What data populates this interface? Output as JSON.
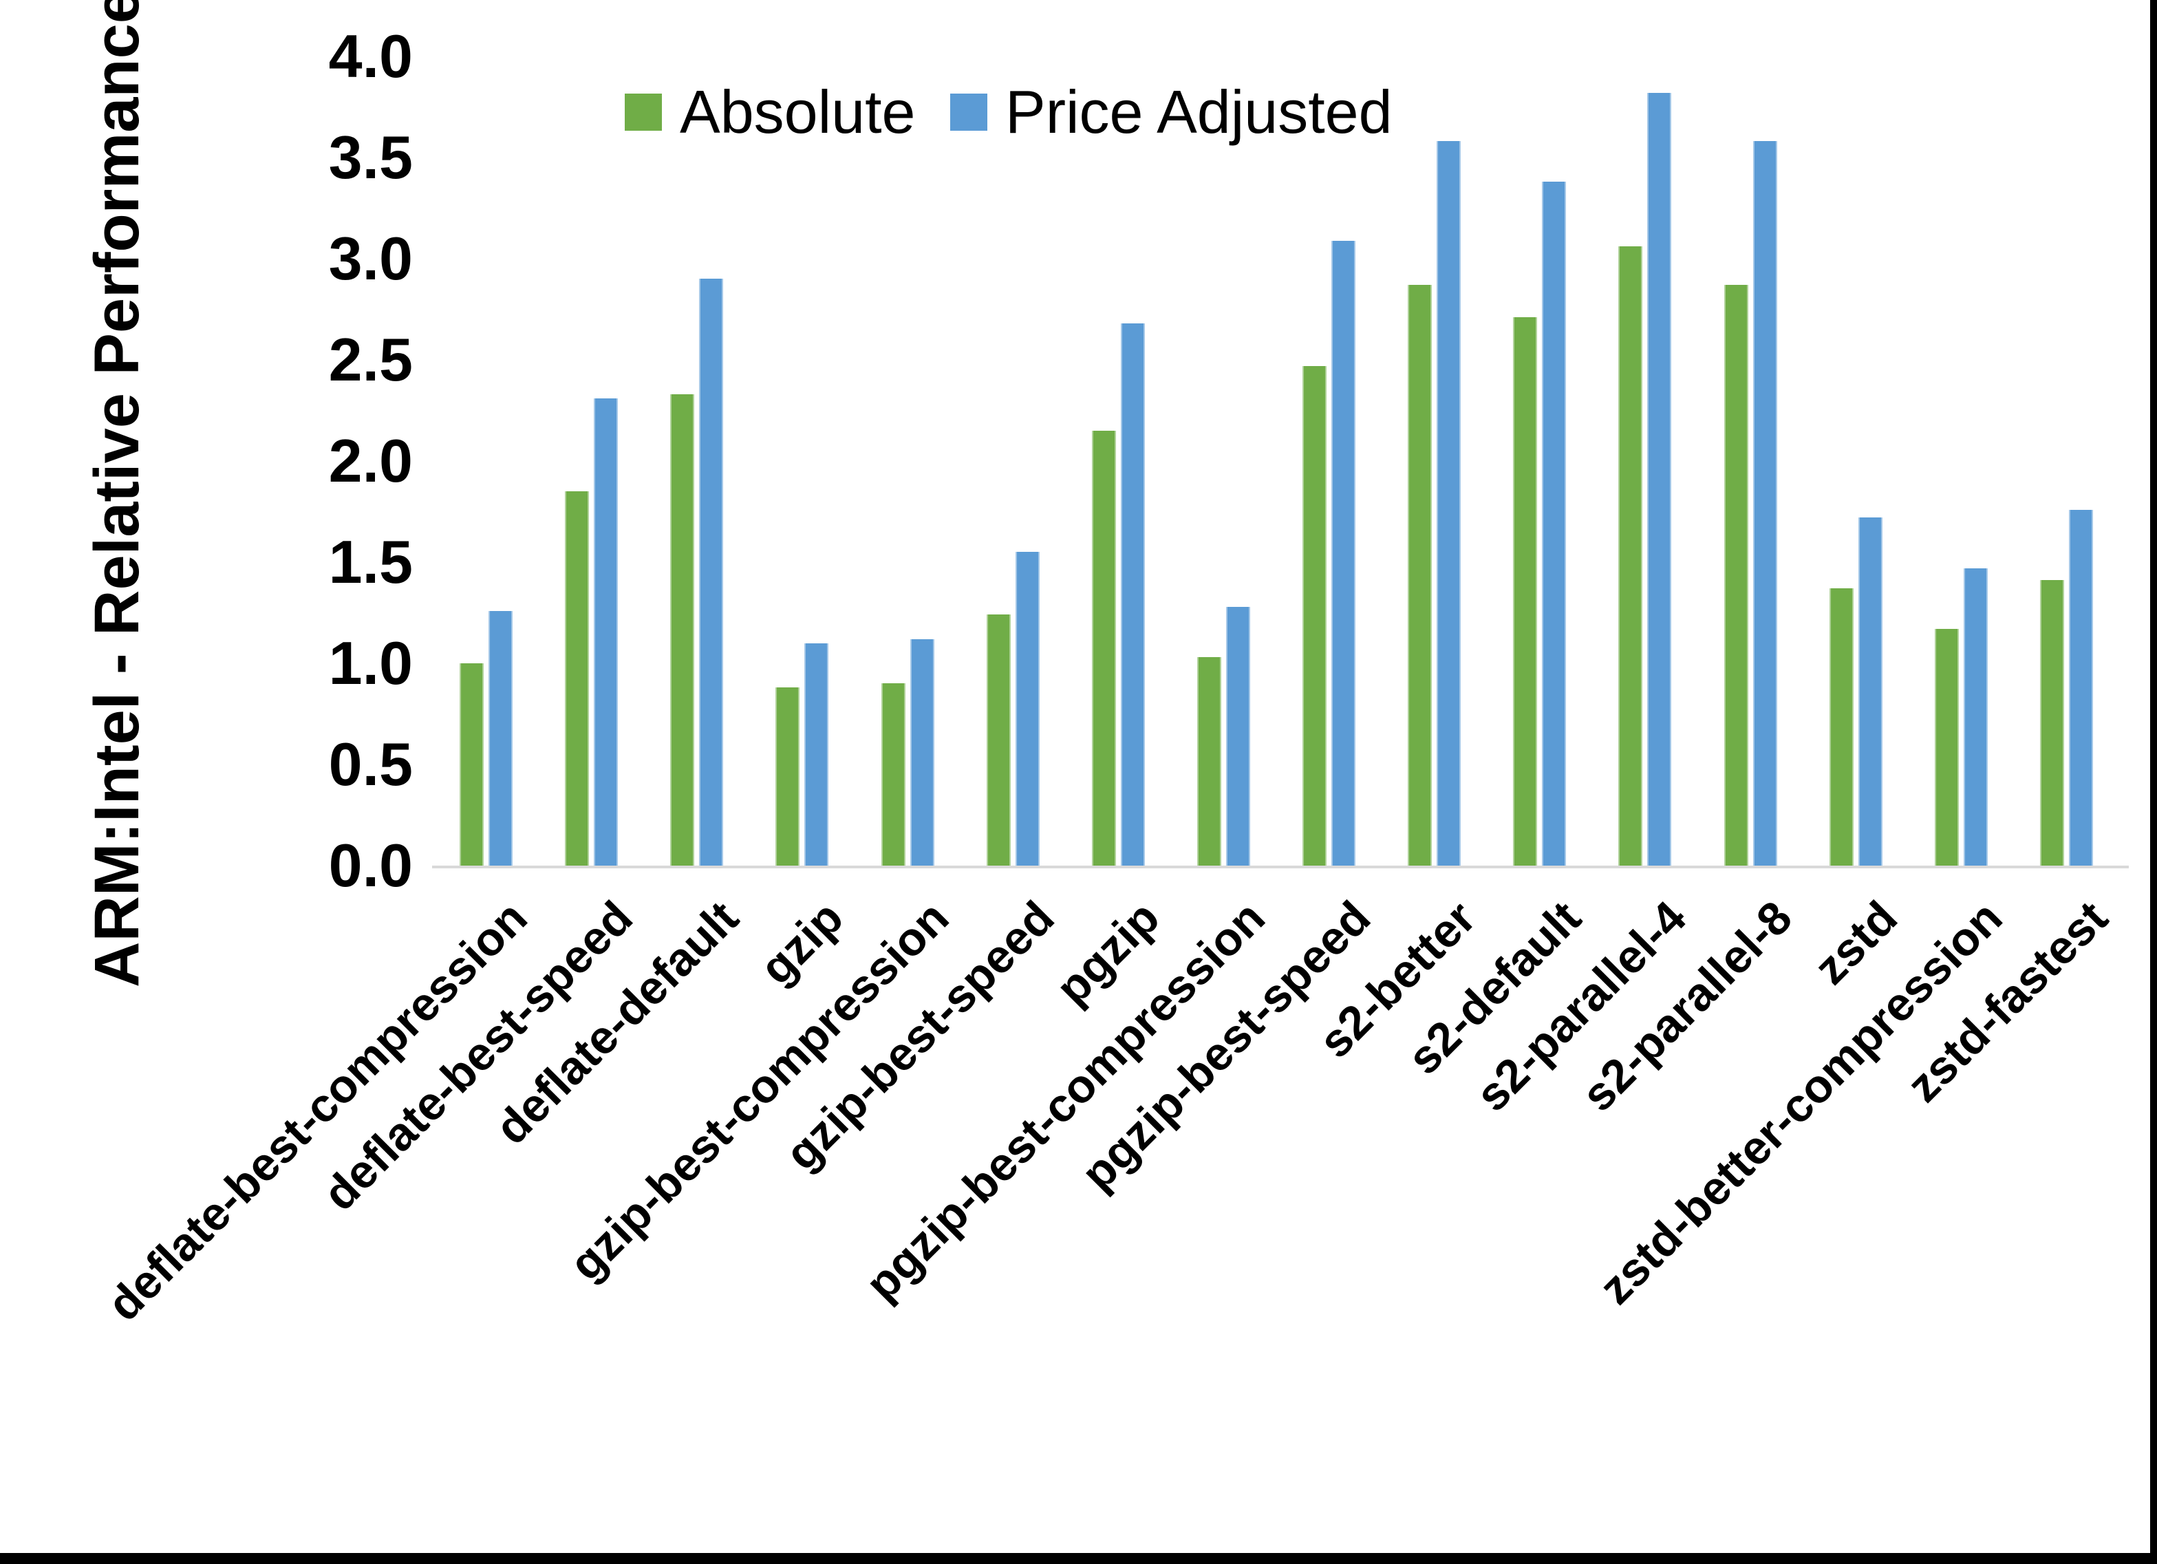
{
  "chart_data": {
    "type": "bar",
    "title": "",
    "ylabel": "ARM:Intel - Relative Performance",
    "xlabel": "",
    "ylim": [
      0.0,
      4.0
    ],
    "ytick_step": 0.5,
    "yticks": [
      "0.0",
      "0.5",
      "1.0",
      "1.5",
      "2.0",
      "2.5",
      "3.0",
      "3.5",
      "4.0"
    ],
    "grid": false,
    "legend_position": "top-center",
    "legend": [
      "Absolute",
      "Price Adjusted"
    ],
    "categories": [
      "deflate-best-compression",
      "deflate-best-speed",
      "deflate-default",
      "gzip",
      "gzip-best-compression",
      "gzip-best-speed",
      "pgzip",
      "pgzip-best-compression",
      "pgzip-best-speed",
      "s2-better",
      "s2-default",
      "s2-parallel-4",
      "s2-parallel-8",
      "zstd",
      "zstd-better-compression",
      "zstd-fastest"
    ],
    "series": [
      {
        "name": "Absolute",
        "color": "#70AD47",
        "values": [
          1.0,
          1.85,
          2.33,
          0.88,
          0.9,
          1.24,
          2.15,
          1.03,
          2.47,
          2.87,
          2.71,
          3.06,
          2.87,
          1.37,
          1.17,
          1.41
        ]
      },
      {
        "name": "Price Adjusted",
        "color": "#5B9BD5",
        "values": [
          1.26,
          2.31,
          2.9,
          1.1,
          1.12,
          1.55,
          2.68,
          1.28,
          3.09,
          3.58,
          3.38,
          3.82,
          3.58,
          1.72,
          1.47,
          1.76
        ]
      }
    ],
    "colors": {
      "axis_line": "#d9d9d9",
      "text": "#000000",
      "background": "#ffffff",
      "frame": "#000000"
    }
  }
}
